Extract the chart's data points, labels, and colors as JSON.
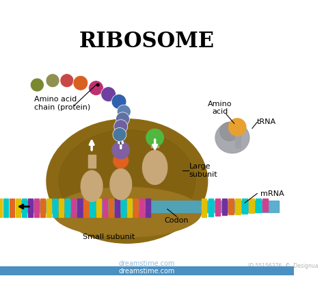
{
  "title": "RIBOSOME",
  "title_fontsize": 22,
  "background_color": "#ffffff",
  "labels": {
    "amino_acid_chain": "Amino acid\nchain (protein)",
    "amino_acid": "Amino\nacid",
    "trna": "tRNA",
    "large_subunit": "Large\nsubunit",
    "small_subunit": "Small subunit",
    "codon": "Codon",
    "mrna": "mRNA"
  },
  "ribosome_body_color": "#8B6914",
  "ribosome_body_edge": "#6B4F10",
  "ribosome_top_color": "#A07820",
  "small_subunit_color": "#9B7520",
  "mrna_backbone_color": "#4AA8C8",
  "amino_acid_colors": [
    "#808000",
    "#808040",
    "#C04040",
    "#E07000",
    "#D04080",
    "#6040A0",
    "#2050A0",
    "#6080B0"
  ],
  "tRNA_body_color": "#9090A0",
  "tRNA_ball_color": "#E8A030",
  "trna_colors": {
    "body": "#909090",
    "ball": "#E8A030"
  },
  "mRNA_bar_colors": [
    "#00C0C0",
    "#E0C000",
    "#E06000",
    "#E060C0",
    "#A030E0"
  ],
  "watermark": "55156376"
}
